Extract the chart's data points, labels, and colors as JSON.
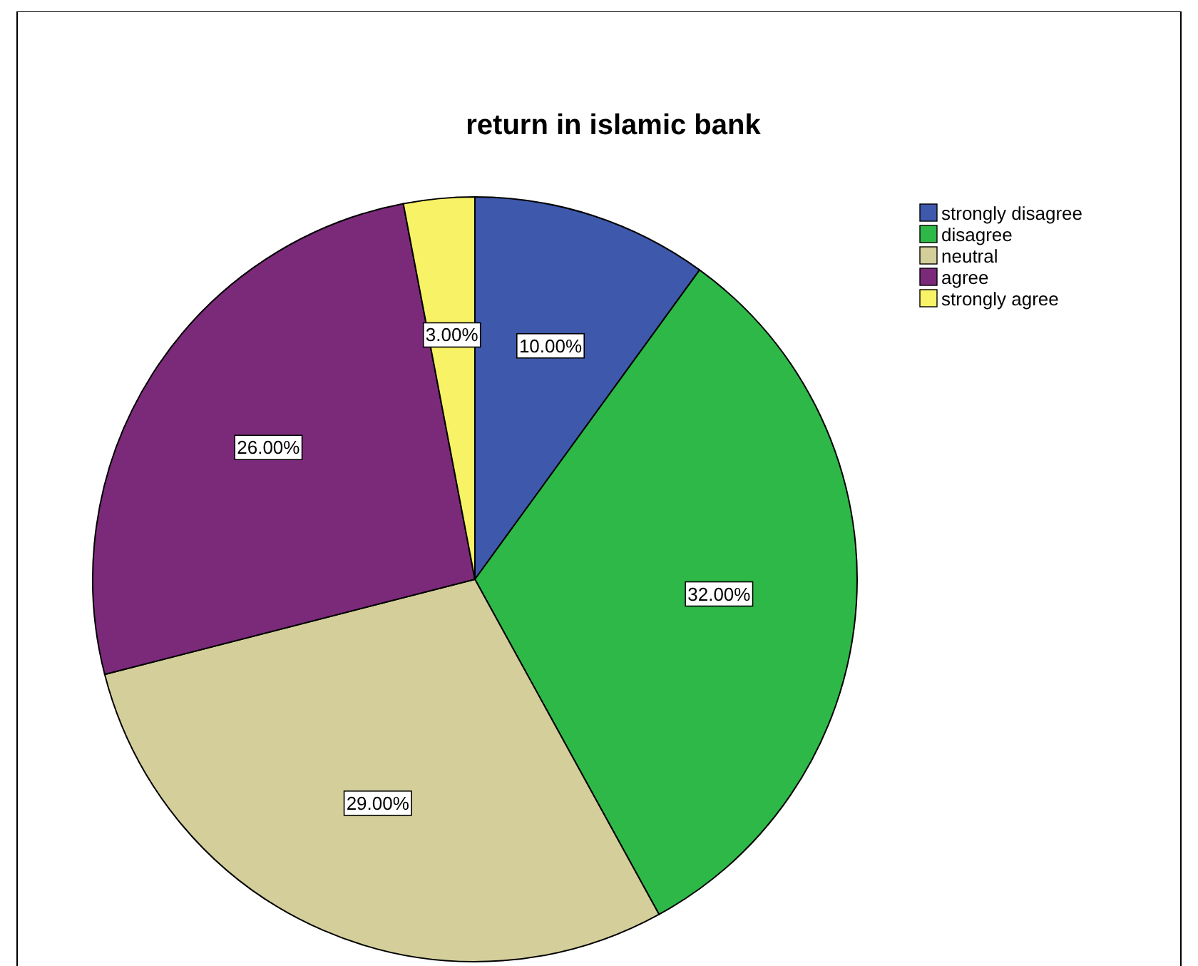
{
  "chart_data": {
    "type": "pie",
    "title": "return in islamic bank",
    "categories": [
      "strongly disagree",
      "disagree",
      "neutral",
      "agree",
      "strongly agree"
    ],
    "values": [
      10,
      32,
      29,
      26,
      3
    ],
    "colors": [
      "#3e58ac",
      "#2eb848",
      "#d4cf9a",
      "#7b2a7a",
      "#f8f267"
    ],
    "value_labels": [
      "10.00%",
      "32.00%",
      "29.00%",
      "26.00%",
      "3.00%"
    ],
    "legend": "top right"
  }
}
